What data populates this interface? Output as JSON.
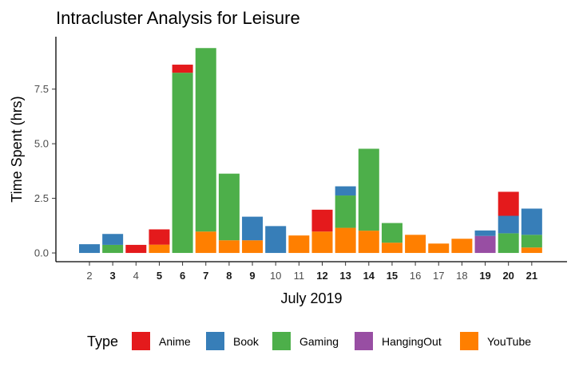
{
  "chart_data": {
    "type": "bar",
    "stacked": true,
    "title": "Intracluster Analysis for Leisure",
    "xlabel": "July 2019",
    "ylabel": "Time Spent (hrs)",
    "categories": [
      "2",
      "3",
      "4",
      "5",
      "6",
      "7",
      "8",
      "9",
      "10",
      "11",
      "12",
      "13",
      "14",
      "15",
      "16",
      "17",
      "18",
      "19",
      "20",
      "21"
    ],
    "bold_categories": [
      "3",
      "5",
      "6",
      "7",
      "8",
      "9",
      "12",
      "13",
      "14",
      "15",
      "19",
      "20",
      "21"
    ],
    "yticks": [
      0,
      2.5,
      5,
      7.5
    ],
    "ytick_labels": [
      "0.0",
      "2.5",
      "5.0",
      "7.5"
    ],
    "ylim": [
      -0.4,
      9.9
    ],
    "stack_order": [
      "YouTube",
      "HangingOut",
      "Gaming",
      "Book",
      "Anime"
    ],
    "series": [
      {
        "name": "Anime",
        "color": "#E41A1C",
        "values": [
          0,
          0,
          0.37,
          0.7,
          0.37,
          0,
          0,
          0,
          0,
          0,
          1.0,
          0,
          0,
          0,
          0,
          0,
          0,
          0,
          1.1,
          0
        ]
      },
      {
        "name": "Book",
        "color": "#377EB8",
        "values": [
          0.4,
          0.5,
          0,
          0,
          0,
          0,
          0,
          1.08,
          1.23,
          0,
          0,
          0.42,
          0,
          0,
          0,
          0,
          0,
          0.25,
          0.8,
          1.2
        ]
      },
      {
        "name": "Gaming",
        "color": "#4DAF4A",
        "values": [
          0,
          0.37,
          0,
          0,
          8.25,
          8.4,
          3.05,
          0,
          0,
          0,
          0,
          1.48,
          3.75,
          0.9,
          0,
          0,
          0,
          0,
          0.9,
          0.58
        ]
      },
      {
        "name": "HangingOut",
        "color": "#984EA3",
        "values": [
          0,
          0,
          0,
          0,
          0,
          0,
          0,
          0,
          0,
          0,
          0,
          0,
          0,
          0,
          0,
          0,
          0,
          0.78,
          0,
          0
        ]
      },
      {
        "name": "YouTube",
        "color": "#FF7F00",
        "values": [
          0,
          0,
          0,
          0.38,
          0,
          0.98,
          0.58,
          0.58,
          0,
          0.8,
          0.98,
          1.15,
          1.02,
          0.47,
          0.83,
          0.43,
          0.65,
          0,
          0,
          0.25
        ]
      }
    ],
    "legend": {
      "title": "Type",
      "position": "bottom",
      "items": [
        "Anime",
        "Book",
        "Gaming",
        "HangingOut",
        "YouTube"
      ]
    },
    "grid": false
  }
}
